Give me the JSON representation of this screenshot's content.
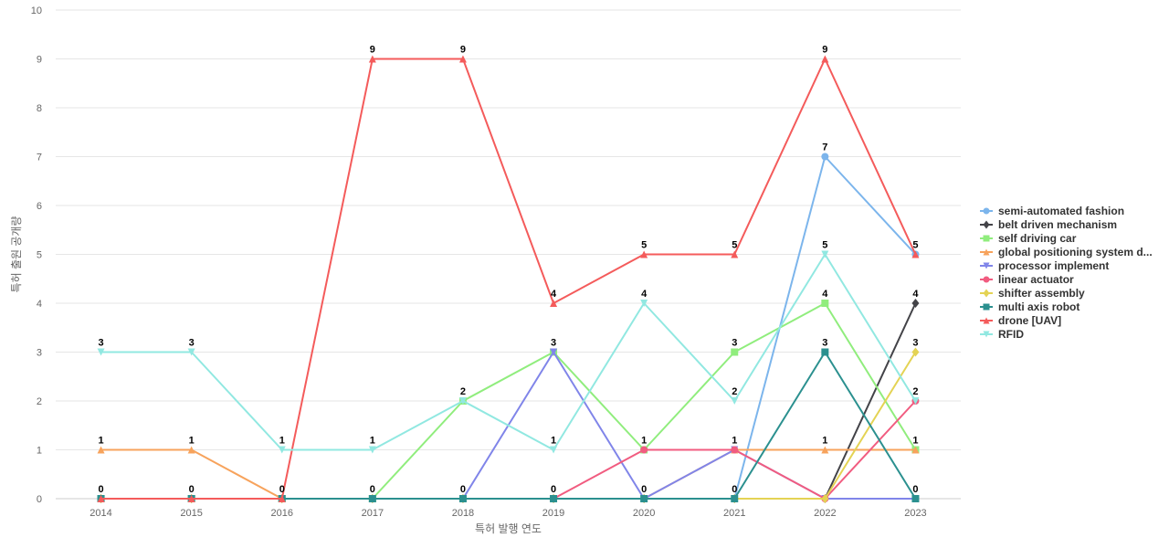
{
  "chart_data": {
    "type": "line",
    "categories": [
      "2014",
      "2015",
      "2016",
      "2017",
      "2018",
      "2019",
      "2020",
      "2021",
      "2022",
      "2023"
    ],
    "xlabel": "특허 발행 연도",
    "ylabel": "특허 출원 공개량",
    "ylim": [
      0,
      10
    ],
    "yticks": [
      "0",
      "1",
      "2",
      "3",
      "4",
      "5",
      "6",
      "7",
      "8",
      "9",
      "10"
    ],
    "grid": true,
    "legend_position": "right",
    "series": [
      {
        "name": "semi-automated fashion",
        "color": "#7cb5ec",
        "marker": "circle",
        "values": [
          0,
          0,
          0,
          0,
          0,
          0,
          0,
          0,
          7,
          5
        ],
        "labels": [
          false,
          false,
          false,
          false,
          false,
          false,
          false,
          false,
          true,
          false
        ]
      },
      {
        "name": "belt driven mechanism",
        "color": "#434348",
        "marker": "diamond",
        "values": [
          0,
          0,
          0,
          0,
          0,
          0,
          0,
          0,
          0,
          4
        ],
        "labels": [
          false,
          false,
          false,
          false,
          false,
          false,
          false,
          false,
          false,
          true
        ]
      },
      {
        "name": "self driving car",
        "color": "#90ed7d",
        "marker": "square",
        "values": [
          0,
          0,
          0,
          0,
          2,
          3,
          1,
          3,
          4,
          1
        ],
        "labels": [
          false,
          false,
          false,
          false,
          true,
          false,
          true,
          true,
          true,
          true
        ]
      },
      {
        "name": "global positioning system d...",
        "color": "#f7a35c",
        "marker": "triangle",
        "values": [
          1,
          1,
          0,
          0,
          0,
          0,
          0,
          1,
          1,
          1
        ],
        "labels": [
          true,
          true,
          false,
          false,
          false,
          false,
          false,
          true,
          true,
          false
        ]
      },
      {
        "name": "processor implement",
        "color": "#8085e9",
        "marker": "triangle-down",
        "values": [
          0,
          0,
          0,
          0,
          0,
          3,
          0,
          1,
          0,
          0
        ],
        "labels": [
          false,
          false,
          false,
          false,
          false,
          true,
          false,
          false,
          false,
          false
        ]
      },
      {
        "name": "linear actuator",
        "color": "#f15c80",
        "marker": "circle",
        "values": [
          0,
          0,
          0,
          0,
          0,
          0,
          1,
          1,
          0,
          2
        ],
        "labels": [
          false,
          false,
          false,
          false,
          false,
          false,
          false,
          false,
          false,
          true
        ]
      },
      {
        "name": "shifter assembly",
        "color": "#e4d354",
        "marker": "diamond",
        "values": [
          0,
          0,
          0,
          0,
          0,
          0,
          0,
          0,
          0,
          3
        ],
        "labels": [
          false,
          false,
          false,
          false,
          false,
          false,
          false,
          false,
          false,
          true
        ]
      },
      {
        "name": "multi axis robot",
        "color": "#2b908f",
        "marker": "square",
        "values": [
          0,
          0,
          0,
          0,
          0,
          0,
          0,
          0,
          3,
          0
        ],
        "labels": [
          true,
          true,
          true,
          true,
          true,
          true,
          true,
          true,
          true,
          true
        ]
      },
      {
        "name": "drone [UAV]",
        "color": "#f45b5b",
        "marker": "triangle",
        "values": [
          0,
          0,
          0,
          9,
          9,
          4,
          5,
          5,
          9,
          5
        ],
        "labels": [
          false,
          false,
          false,
          true,
          true,
          true,
          true,
          true,
          true,
          true
        ]
      },
      {
        "name": "RFID",
        "color": "#91e8e1",
        "marker": "triangle-down",
        "values": [
          3,
          3,
          1,
          1,
          2,
          1,
          4,
          2,
          5,
          2
        ],
        "labels": [
          true,
          true,
          true,
          true,
          false,
          true,
          true,
          true,
          true,
          false
        ]
      }
    ]
  }
}
